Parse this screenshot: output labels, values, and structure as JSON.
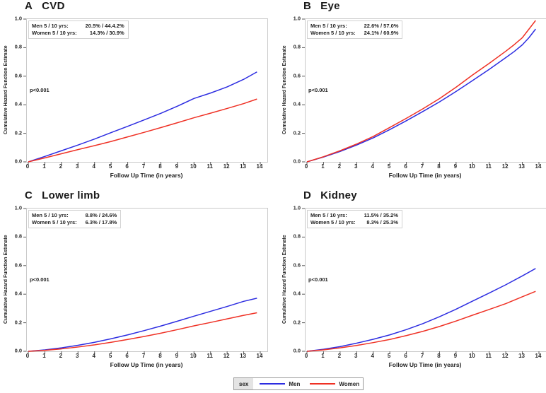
{
  "figure": {
    "background": "#ffffff",
    "legend": {
      "title": "sex",
      "title_bg": "#e4e4e4",
      "series": [
        {
          "label": "Men",
          "color": "#2d2de1"
        },
        {
          "label": "Women",
          "color": "#ef3125"
        }
      ]
    }
  },
  "chart_data": [
    {
      "type": "line",
      "panel_letter": "A",
      "title": "CVD",
      "xlabel": "Follow Up Time (in years)",
      "ylabel": "Cumulative Hazard Function Estimate",
      "p_value": "p<0.001",
      "inset_rows": [
        {
          "label": "Men 5 / 10 yrs:",
          "value": "20.5% / 44.4.2%"
        },
        {
          "label": "Women 5 / 10 yrs:",
          "value": "14.3% / 30.9%"
        }
      ],
      "xlim": [
        0,
        14
      ],
      "ylim": [
        0,
        1
      ],
      "x_ticks": [
        0,
        1,
        2,
        3,
        4,
        5,
        6,
        7,
        8,
        9,
        10,
        11,
        12,
        13,
        14
      ],
      "y_ticks": [
        "1.0",
        "0.8",
        "0.6",
        "0.4",
        "0.2",
        "0.0"
      ],
      "legend_position": "bottom",
      "grid": false,
      "series": [
        {
          "name": "Men",
          "color": "#2d2de1",
          "x": [
            0,
            1,
            2,
            3,
            4,
            5,
            6,
            7,
            8,
            9,
            10,
            11,
            12,
            13,
            13.8
          ],
          "y": [
            0,
            0.038,
            0.078,
            0.118,
            0.16,
            0.205,
            0.249,
            0.294,
            0.34,
            0.39,
            0.444,
            0.482,
            0.525,
            0.578,
            0.63
          ]
        },
        {
          "name": "Women",
          "color": "#ef3125",
          "x": [
            0,
            1,
            2,
            3,
            4,
            5,
            6,
            7,
            8,
            9,
            10,
            11,
            12,
            13,
            13.8
          ],
          "y": [
            0,
            0.028,
            0.057,
            0.086,
            0.114,
            0.143,
            0.175,
            0.207,
            0.24,
            0.274,
            0.309,
            0.341,
            0.374,
            0.408,
            0.44
          ]
        }
      ]
    },
    {
      "type": "line",
      "panel_letter": "B",
      "title": "Eye",
      "xlabel": "Follow Up Time (in years)",
      "ylabel": "Cumulative Hazard Function Estimate",
      "p_value": "p<0.001",
      "inset_rows": [
        {
          "label": "Men 5 / 10 yrs:",
          "value": "22.6% / 57.0%"
        },
        {
          "label": "Women 5 / 10 yrs:",
          "value": "24.1% / 60.9%"
        }
      ],
      "xlim": [
        0,
        14
      ],
      "ylim": [
        0,
        1
      ],
      "x_ticks": [
        0,
        1,
        2,
        3,
        4,
        5,
        6,
        7,
        8,
        9,
        10,
        11,
        12,
        13,
        14
      ],
      "y_ticks": [
        "1.0",
        "0.8",
        "0.6",
        "0.4",
        "0.2",
        "0.0"
      ],
      "legend_position": "bottom",
      "grid": false,
      "series": [
        {
          "name": "Men",
          "color": "#2d2de1",
          "x": [
            0,
            1,
            2,
            3,
            4,
            5,
            6,
            7,
            8,
            9,
            10,
            11,
            12,
            12.5,
            13,
            13.4,
            13.8
          ],
          "y": [
            0,
            0.034,
            0.073,
            0.118,
            0.168,
            0.226,
            0.288,
            0.353,
            0.42,
            0.493,
            0.57,
            0.648,
            0.73,
            0.772,
            0.82,
            0.87,
            0.93
          ]
        },
        {
          "name": "Women",
          "color": "#ef3125",
          "x": [
            0,
            1,
            2,
            3,
            4,
            5,
            6,
            7,
            8,
            9,
            10,
            11,
            12,
            12.5,
            13,
            13.4,
            13.8
          ],
          "y": [
            0,
            0.036,
            0.078,
            0.125,
            0.178,
            0.241,
            0.305,
            0.372,
            0.443,
            0.523,
            0.609,
            0.69,
            0.775,
            0.82,
            0.87,
            0.93,
            0.99
          ]
        }
      ]
    },
    {
      "type": "line",
      "panel_letter": "C",
      "title": "Lower limb",
      "xlabel": "Follow Up Time (in years)",
      "ylabel": "Cumulative Hazard Function Estimate",
      "p_value": "p<0.001",
      "inset_rows": [
        {
          "label": "Men 5 / 10 yrs:",
          "value": "8.8% / 24.6%"
        },
        {
          "label": "Women 5 / 10 yrs:",
          "value": "6.3% / 17.8%"
        }
      ],
      "xlim": [
        0,
        14
      ],
      "ylim": [
        0,
        1
      ],
      "x_ticks": [
        0,
        1,
        2,
        3,
        4,
        5,
        6,
        7,
        8,
        9,
        10,
        11,
        12,
        13,
        14
      ],
      "y_ticks": [
        "1.0",
        "0.8",
        "0.6",
        "0.4",
        "0.2",
        "0.0"
      ],
      "legend_position": "bottom",
      "grid": false,
      "series": [
        {
          "name": "Men",
          "color": "#2d2de1",
          "x": [
            0,
            1,
            2,
            3,
            4,
            5,
            6,
            7,
            8,
            9,
            10,
            11,
            12,
            13,
            13.8
          ],
          "y": [
            0,
            0.01,
            0.024,
            0.042,
            0.063,
            0.088,
            0.115,
            0.145,
            0.177,
            0.211,
            0.246,
            0.28,
            0.314,
            0.35,
            0.372
          ]
        },
        {
          "name": "Women",
          "color": "#ef3125",
          "x": [
            0,
            1,
            2,
            3,
            4,
            5,
            6,
            7,
            8,
            9,
            10,
            11,
            12,
            13,
            13.8
          ],
          "y": [
            0,
            0.007,
            0.017,
            0.03,
            0.045,
            0.063,
            0.083,
            0.104,
            0.127,
            0.152,
            0.178,
            0.202,
            0.227,
            0.252,
            0.27
          ]
        }
      ]
    },
    {
      "type": "line",
      "panel_letter": "D",
      "title": "Kidney",
      "xlabel": "Follow Up Time (in years)",
      "ylabel": "Cumulative Hazard Function Estimate",
      "p_value": "p<0.001",
      "inset_rows": [
        {
          "label": "Men 5 / 10 yrs:",
          "value": "11.5% / 35.2%"
        },
        {
          "label": "Women 5 / 10 yrs:",
          "value": "8.3% / 25.3%"
        }
      ],
      "xlim": [
        0,
        14
      ],
      "ylim": [
        0,
        1
      ],
      "x_ticks": [
        0,
        1,
        2,
        3,
        4,
        5,
        6,
        7,
        8,
        9,
        10,
        11,
        12,
        13,
        14
      ],
      "y_ticks": [
        "1.0",
        "0.8",
        "0.6",
        "0.4",
        "0.2",
        "0.0"
      ],
      "legend_position": "bottom",
      "grid": false,
      "series": [
        {
          "name": "Men",
          "color": "#2d2de1",
          "x": [
            0,
            1,
            2,
            3,
            4,
            5,
            6,
            7,
            8,
            9,
            10,
            11,
            12,
            13,
            13.8
          ],
          "y": [
            0,
            0.014,
            0.033,
            0.057,
            0.084,
            0.115,
            0.152,
            0.194,
            0.242,
            0.295,
            0.352,
            0.408,
            0.466,
            0.528,
            0.58
          ]
        },
        {
          "name": "Women",
          "color": "#ef3125",
          "x": [
            0,
            1,
            2,
            3,
            4,
            5,
            6,
            7,
            8,
            9,
            10,
            11,
            12,
            13,
            13.8
          ],
          "y": [
            0,
            0.01,
            0.024,
            0.041,
            0.061,
            0.083,
            0.11,
            0.14,
            0.174,
            0.212,
            0.253,
            0.293,
            0.334,
            0.382,
            0.42
          ]
        }
      ]
    }
  ]
}
